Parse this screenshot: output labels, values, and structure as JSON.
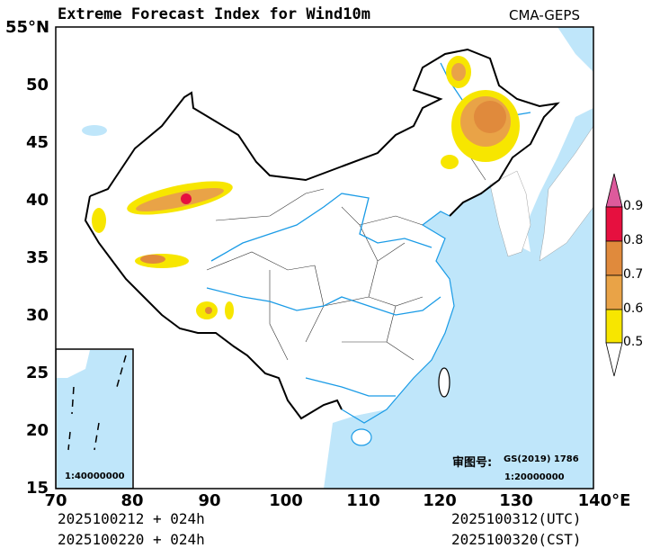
{
  "title": "Extreme Forecast Index for Wind10m",
  "source": "CMA-GEPS",
  "y_ticks": [
    "55°N",
    "50",
    "45",
    "40",
    "35",
    "30",
    "25",
    "20",
    "15"
  ],
  "x_ticks": [
    "70",
    "80",
    "90",
    "100",
    "110",
    "120",
    "130",
    "140°E"
  ],
  "init_utc": "2025100212 + 024h",
  "init_cst": "2025100220 + 024h",
  "valid_utc": "2025100312(UTC)",
  "valid_cst": "2025100320(CST)",
  "review_label": "审图号:",
  "review_number": "GS(2019) 1786",
  "main_scale": "1:20000000",
  "inset_scale": "1:40000000",
  "colorbar": {
    "labels": [
      "0.9",
      "0.8",
      "0.7",
      "0.6",
      "0.5"
    ],
    "colors": {
      "lt_0.5": "#ffffff",
      "0.5-0.6": "#f7e600",
      "0.6-0.7": "#e9a347",
      "0.7-0.8": "#e08a3c",
      "0.8-0.9": "#e6103f",
      "gt_0.9": "#dd5a9c"
    }
  },
  "colors": {
    "ocean": "#bfe6fa",
    "river": "#1a9be6",
    "land": "#ffffff"
  }
}
